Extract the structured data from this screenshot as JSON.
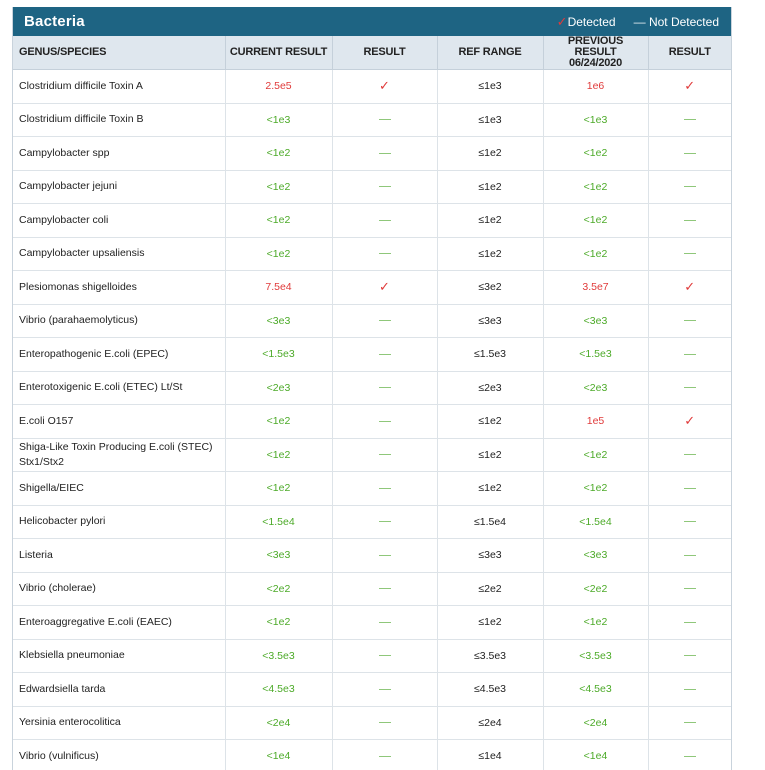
{
  "panel": {
    "title": "Bacteria",
    "legend": {
      "detected_label": "Detected",
      "not_detected_label": "Not Detected"
    }
  },
  "columns": [
    "GENUS/SPECIES",
    "CURRENT RESULT",
    "RESULT",
    "REF RANGE",
    "PREVIOUS RESULT",
    "06/24/2020",
    "RESULT"
  ],
  "rows": [
    {
      "name": "Clostridium difficile Toxin A",
      "current": "2.5e5",
      "current_detected": true,
      "ref": "≤1e3",
      "previous": "1e6",
      "previous_detected": true
    },
    {
      "name": "Clostridium difficile Toxin B",
      "current": "<1e3",
      "current_detected": false,
      "ref": "≤1e3",
      "previous": "<1e3",
      "previous_detected": false
    },
    {
      "name": "Campylobacter spp",
      "current": "<1e2",
      "current_detected": false,
      "ref": "≤1e2",
      "previous": "<1e2",
      "previous_detected": false
    },
    {
      "name": "Campylobacter jejuni",
      "current": "<1e2",
      "current_detected": false,
      "ref": "≤1e2",
      "previous": "<1e2",
      "previous_detected": false
    },
    {
      "name": "Campylobacter coli",
      "current": "<1e2",
      "current_detected": false,
      "ref": "≤1e2",
      "previous": "<1e2",
      "previous_detected": false
    },
    {
      "name": "Campylobacter upsaliensis",
      "current": "<1e2",
      "current_detected": false,
      "ref": "≤1e2",
      "previous": "<1e2",
      "previous_detected": false
    },
    {
      "name": "Plesiomonas shigelloides",
      "current": "7.5e4",
      "current_detected": true,
      "ref": "≤3e2",
      "previous": "3.5e7",
      "previous_detected": true
    },
    {
      "name": "Vibrio (parahaemolyticus)",
      "current": "<3e3",
      "current_detected": false,
      "ref": "≤3e3",
      "previous": "<3e3",
      "previous_detected": false
    },
    {
      "name": "Enteropathogenic E.coli (EPEC)",
      "current": "<1.5e3",
      "current_detected": false,
      "ref": "≤1.5e3",
      "previous": "<1.5e3",
      "previous_detected": false
    },
    {
      "name": "Enterotoxigenic E.coli (ETEC) Lt/St",
      "current": "<2e3",
      "current_detected": false,
      "ref": "≤2e3",
      "previous": "<2e3",
      "previous_detected": false
    },
    {
      "name": "E.coli O157",
      "current": "<1e2",
      "current_detected": false,
      "ref": "≤1e2",
      "previous": "1e5",
      "previous_detected": true
    },
    {
      "name": "Shiga-Like Toxin Producing E.coli (STEC) Stx1/Stx2",
      "current": "<1e2",
      "current_detected": false,
      "ref": "≤1e2",
      "previous": "<1e2",
      "previous_detected": false
    },
    {
      "name": "Shigella/EIEC",
      "current": "<1e2",
      "current_detected": false,
      "ref": "≤1e2",
      "previous": "<1e2",
      "previous_detected": false
    },
    {
      "name": "Helicobacter pylori",
      "current": "<1.5e4",
      "current_detected": false,
      "ref": "≤1.5e4",
      "previous": "<1.5e4",
      "previous_detected": false
    },
    {
      "name": "Listeria",
      "current": "<3e3",
      "current_detected": false,
      "ref": "≤3e3",
      "previous": "<3e3",
      "previous_detected": false
    },
    {
      "name": "Vibrio (cholerae)",
      "current": "<2e2",
      "current_detected": false,
      "ref": "≤2e2",
      "previous": "<2e2",
      "previous_detected": false
    },
    {
      "name": "Enteroaggregative E.coli (EAEC)",
      "current": "<1e2",
      "current_detected": false,
      "ref": "≤1e2",
      "previous": "<1e2",
      "previous_detected": false
    },
    {
      "name": "Klebsiella pneumoniae",
      "current": "<3.5e3",
      "current_detected": false,
      "ref": "≤3.5e3",
      "previous": "<3.5e3",
      "previous_detected": false
    },
    {
      "name": "Edwardsiella tarda",
      "current": "<4.5e3",
      "current_detected": false,
      "ref": "≤4.5e3",
      "previous": "<4.5e3",
      "previous_detected": false
    },
    {
      "name": "Yersinia enterocolitica",
      "current": "<2e4",
      "current_detected": false,
      "ref": "≤2e4",
      "previous": "<2e4",
      "previous_detected": false
    },
    {
      "name": "Vibrio (vulnificus)",
      "current": "<1e4",
      "current_detected": false,
      "ref": "≤1e4",
      "previous": "<1e4",
      "previous_detected": false
    }
  ],
  "marks": {
    "detected_icon": "check-icon",
    "not_detected_icon": "dash-icon"
  },
  "colors": {
    "header_bg": "#1e6483",
    "detected": "#e03a3a",
    "not_detected": "#4caa28"
  }
}
